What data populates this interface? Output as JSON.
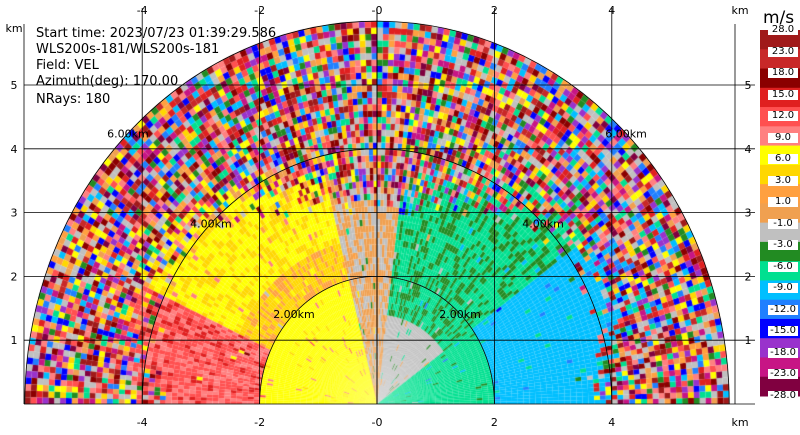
{
  "header": {
    "start_time": "Start time: 2023/07/23 01:39:29.586",
    "instrument": "WLS200s-181/WLS200s-181",
    "field": "Field: VEL",
    "azimuth": "Azimuth(deg): 170.00",
    "nrays": "NRays: 180"
  },
  "colorbar": {
    "unit": "m/s",
    "ticks": [
      "28.0",
      "23.0",
      "18.0",
      "15.0",
      "12.0",
      "9.0",
      "6.0",
      "3.0",
      "1.0",
      "-1.0",
      "-3.0",
      "-6.0",
      "-9.0",
      "-12.0",
      "-15.0",
      "-18.0",
      "-23.0",
      "-28.0"
    ],
    "colors": [
      "#a01a1a",
      "#c82828",
      "#8b0000",
      "#e02020",
      "#ff5050",
      "#ff8080",
      "#ffff00",
      "#ffd700",
      "#ffa040",
      "#f0a050",
      "#c0c0c0",
      "#228b22",
      "#00e090",
      "#00bfff",
      "#2080ff",
      "#0000ff",
      "#9932cc",
      "#c71585",
      "#800040"
    ]
  },
  "chart_data": {
    "type": "heatmap",
    "description_field": "VEL",
    "x_unit": "km",
    "y_unit": "km",
    "xlim": [
      -6.2,
      6.2
    ],
    "ylim": [
      0,
      5.65
    ],
    "x_ticks": [
      -4,
      -2,
      0,
      2,
      4
    ],
    "y_ticks": [
      1,
      2,
      3,
      4,
      5
    ],
    "x_tick_labels": [
      "-4",
      "-2",
      "-0",
      "2",
      "4"
    ],
    "y_tick_labels": [
      "1",
      "2",
      "3",
      "4",
      "5"
    ],
    "axis_unit_label": "km",
    "max_range_km": 6.0,
    "range_rings_km": [
      2,
      4,
      6
    ],
    "range_ring_labels": [
      "2.00km",
      "4.00km",
      "6.00km"
    ],
    "color_scale_ms": [
      28,
      23,
      18,
      15,
      12,
      9,
      6,
      3,
      1,
      -1,
      -3,
      -6,
      -9,
      -12,
      -15,
      -18,
      -23,
      -28
    ],
    "approximate_field_regions": [
      {
        "range_km": [
          0,
          2
        ],
        "azimuth_side": "west",
        "velocity_ms": 6.0
      },
      {
        "range_km": [
          0,
          2
        ],
        "azimuth_side": "east",
        "velocity_ms": -9.0
      },
      {
        "range_km": [
          0,
          2
        ],
        "azimuth_side": "north",
        "velocity_ms": -1.0
      },
      {
        "range_km": [
          2,
          4
        ],
        "azimuth_side": "west",
        "velocity_ms": 3.0
      },
      {
        "range_km": [
          2,
          4
        ],
        "azimuth_side": "east",
        "velocity_ms": -6.0
      },
      {
        "range_km": [
          4,
          6
        ],
        "azimuth_side": "all",
        "velocity_ms": "noise"
      }
    ]
  }
}
